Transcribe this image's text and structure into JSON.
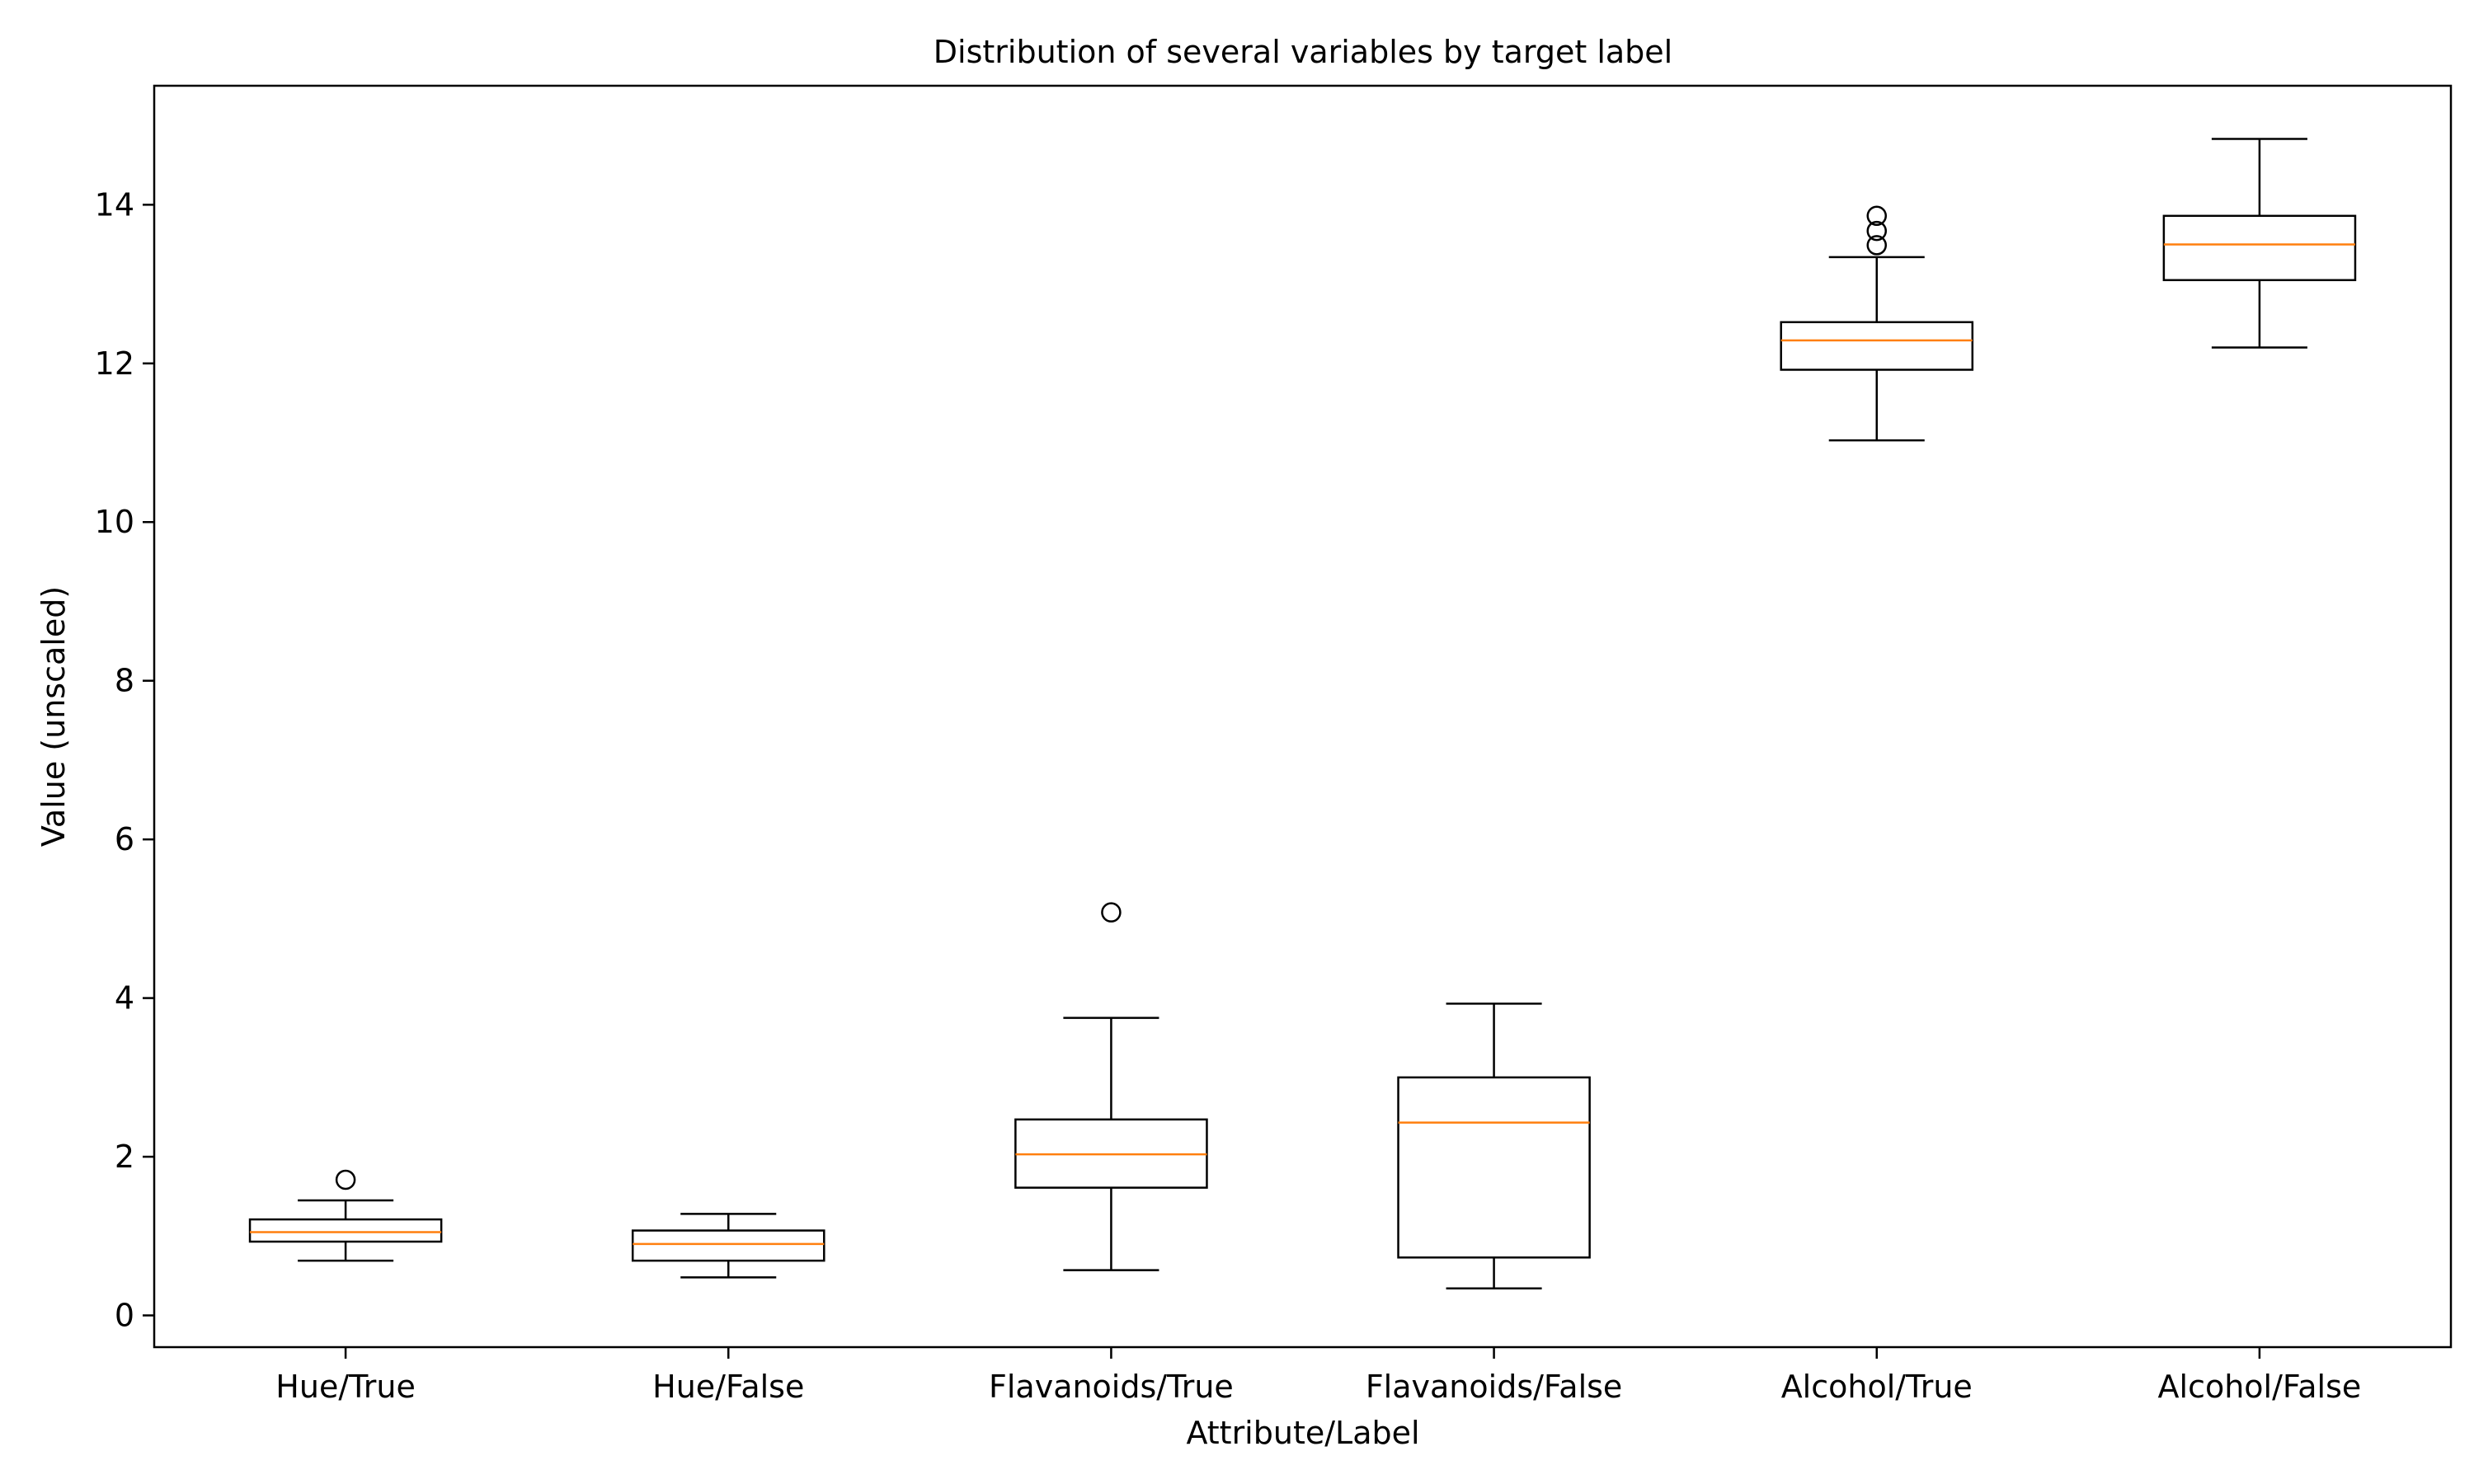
{
  "chart_data": {
    "type": "boxplot",
    "title": "Distribution of several variables by target label",
    "xlabel": "Attribute/Label",
    "ylabel": "Value (unscaled)",
    "ylim": [
      -0.4,
      15.5
    ],
    "yticks": [
      0,
      2,
      4,
      6,
      8,
      10,
      12,
      14
    ],
    "grid": false,
    "colors": {
      "box": "#000000",
      "median": "#ff7f0e",
      "outlier": "#000000"
    },
    "categories": [
      "Hue/True",
      "Hue/False",
      "Flavanoids/True",
      "Flavanoids/False",
      "Alcohol/True",
      "Alcohol/False"
    ],
    "boxes": [
      {
        "label": "Hue/True",
        "whisker_low": 0.69,
        "q1": 0.93,
        "median": 1.05,
        "q3": 1.21,
        "whisker_high": 1.45,
        "outliers": [
          1.71
        ]
      },
      {
        "label": "Hue/False",
        "whisker_low": 0.48,
        "q1": 0.69,
        "median": 0.9,
        "q3": 1.07,
        "whisker_high": 1.28,
        "outliers": []
      },
      {
        "label": "Flavanoids/True",
        "whisker_low": 0.57,
        "q1": 1.61,
        "median": 2.03,
        "q3": 2.47,
        "whisker_high": 3.75,
        "outliers": [
          5.08
        ]
      },
      {
        "label": "Flavanoids/False",
        "whisker_low": 0.34,
        "q1": 0.73,
        "median": 2.43,
        "q3": 3.0,
        "whisker_high": 3.93,
        "outliers": []
      },
      {
        "label": "Alcohol/True",
        "whisker_low": 11.03,
        "q1": 11.92,
        "median": 12.29,
        "q3": 12.52,
        "whisker_high": 13.34,
        "outliers": [
          13.49,
          13.67,
          13.86
        ]
      },
      {
        "label": "Alcohol/False",
        "whisker_low": 12.2,
        "q1": 13.05,
        "median": 13.5,
        "q3": 13.86,
        "whisker_high": 14.83,
        "outliers": []
      }
    ]
  }
}
